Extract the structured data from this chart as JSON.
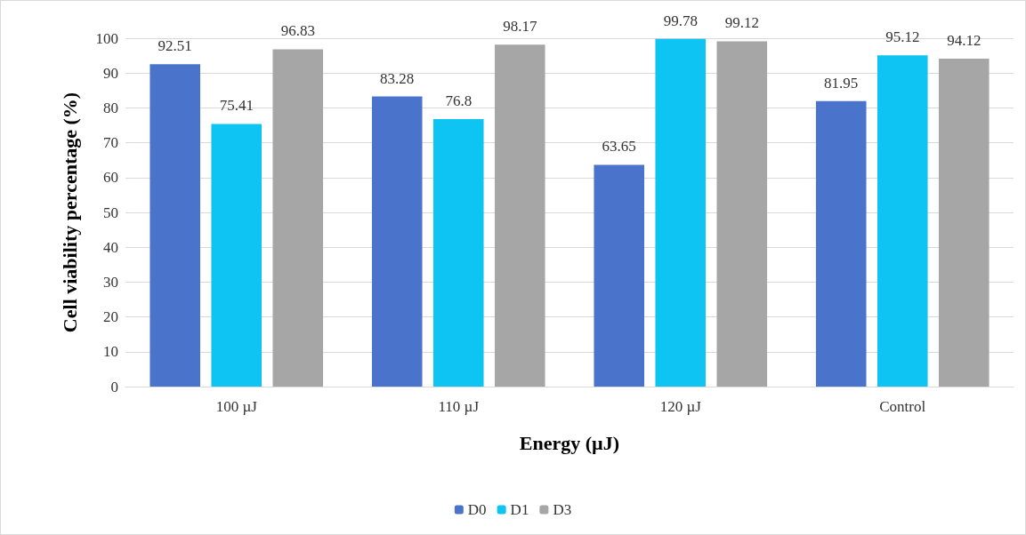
{
  "chart_data": {
    "type": "bar",
    "xlabel": "Energy (µJ)",
    "ylabel": "Cell viability percentage (%)",
    "categories": [
      "100 µJ",
      "110 µJ",
      "120 µJ",
      "Control"
    ],
    "series": [
      {
        "name": "D0",
        "color": "#4a74cc",
        "values": [
          92.51,
          83.28,
          63.65,
          81.95
        ]
      },
      {
        "name": "D1",
        "color": "#0dc4f2",
        "values": [
          75.41,
          76.8,
          99.78,
          95.12
        ]
      },
      {
        "name": "D3",
        "color": "#a6a6a6",
        "values": [
          96.83,
          98.17,
          99.12,
          94.12
        ]
      }
    ],
    "ylim": [
      0,
      100
    ],
    "yticks": [
      0,
      10,
      20,
      30,
      40,
      50,
      60,
      70,
      80,
      90,
      100
    ],
    "grid": "y",
    "legend": "bottom",
    "data_labels": true
  }
}
